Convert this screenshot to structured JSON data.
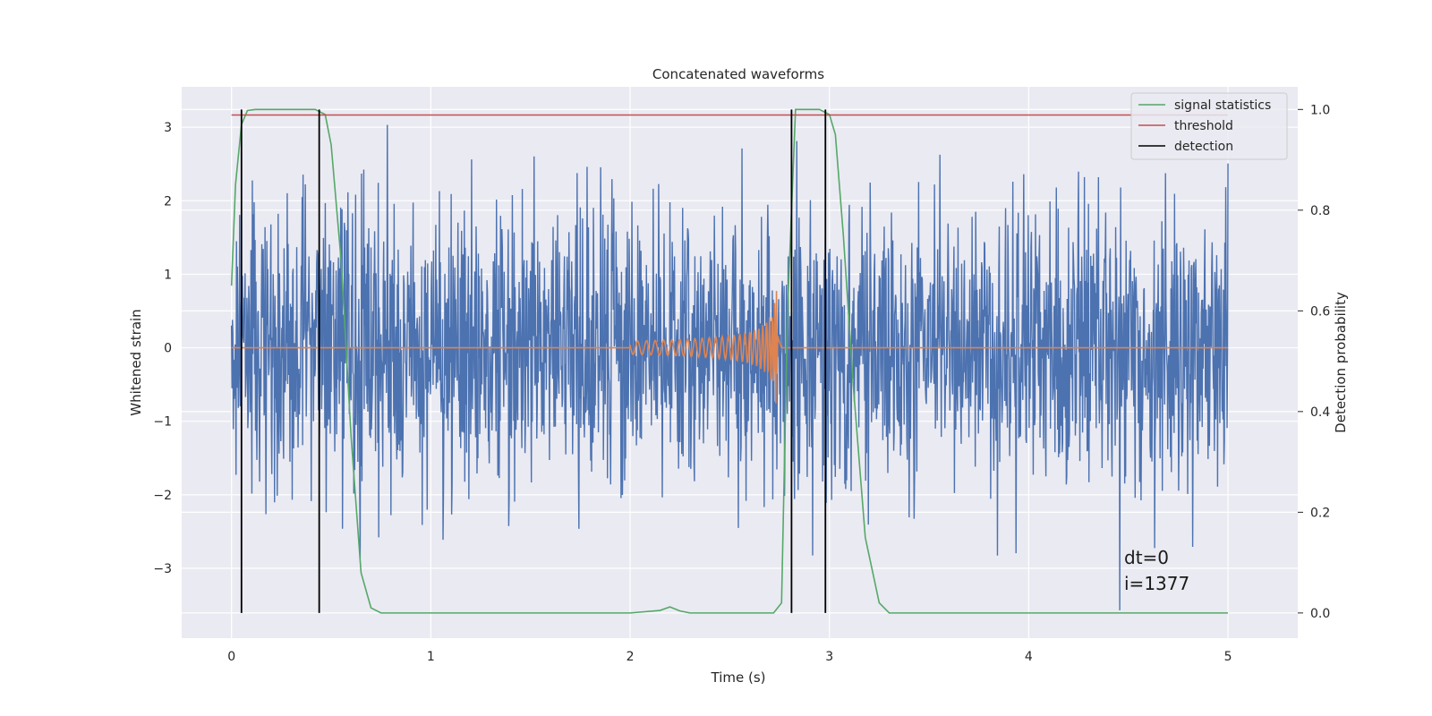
{
  "chart_data": {
    "type": "line",
    "title": "Concatenated waveforms",
    "xlabel": "Time (s)",
    "ylabel": "Whitened strain",
    "ylabel_right": "Detection probability",
    "xlim": [
      -0.25,
      5.35
    ],
    "ylim": [
      -3.95,
      3.55
    ],
    "ylim_right": [
      -0.05,
      1.045
    ],
    "xticks": [
      0,
      1,
      2,
      3,
      4,
      5
    ],
    "yticks": [
      -3,
      -2,
      -1,
      0,
      1,
      2,
      3
    ],
    "yticks_right": [
      0.0,
      0.2,
      0.4,
      0.6,
      0.8,
      1.0
    ],
    "xtick_labels": [
      "0",
      "1",
      "2",
      "3",
      "4",
      "5"
    ],
    "ytick_labels": [
      "−3",
      "−2",
      "−1",
      "0",
      "1",
      "2",
      "3"
    ],
    "ytick_labels_right": [
      "0.0",
      "0.2",
      "0.4",
      "0.6",
      "0.8",
      "1.0"
    ],
    "grid": true,
    "legend_position": "top-right",
    "series": [
      {
        "name": "",
        "axis": "left",
        "color": "#4c72b0",
        "kind": "noise",
        "x_range": [
          0,
          5
        ],
        "typical_amplitude": 1.0,
        "peak_range": [
          -3.6,
          3.4
        ]
      },
      {
        "name": "",
        "axis": "left",
        "color": "#dd8452",
        "kind": "chirp",
        "x_range": [
          0,
          5
        ],
        "chirp_start": 2.0,
        "chirp_end": 2.74,
        "peak_amplitude": 1.3
      },
      {
        "name": "signal statistics",
        "axis": "right",
        "color": "#55a868",
        "x": [
          0,
          0.02,
          0.05,
          0.08,
          0.12,
          0.3,
          0.42,
          0.47,
          0.5,
          0.55,
          0.6,
          0.65,
          0.7,
          0.75,
          1.0,
          2.0,
          2.15,
          2.2,
          2.25,
          2.3,
          2.72,
          2.76,
          2.79,
          2.83,
          2.95,
          3.0,
          3.03,
          3.07,
          3.12,
          3.18,
          3.25,
          3.3,
          5.0
        ],
        "y": [
          0.65,
          0.85,
          0.97,
          0.998,
          1.0,
          1.0,
          1.0,
          0.99,
          0.93,
          0.7,
          0.35,
          0.08,
          0.01,
          0.0,
          0.0,
          0.0,
          0.005,
          0.012,
          0.004,
          0.0,
          0.0,
          0.02,
          0.6,
          1.0,
          1.0,
          0.99,
          0.95,
          0.75,
          0.45,
          0.15,
          0.02,
          0.0,
          0.0
        ]
      },
      {
        "name": "threshold",
        "axis": "right",
        "color": "#c44e52",
        "x": [
          0,
          5
        ],
        "y": [
          0.989,
          0.989
        ]
      }
    ],
    "detections": {
      "name": "detection",
      "color": "#000000",
      "x": [
        0.05,
        0.44,
        2.81,
        2.98
      ],
      "y_range": [
        0.0,
        1.0
      ]
    },
    "annotations": [
      "dt=0",
      "i=1377"
    ],
    "colors": {
      "plot_bg": "#eaeaf2",
      "grid": "#ffffff"
    }
  }
}
